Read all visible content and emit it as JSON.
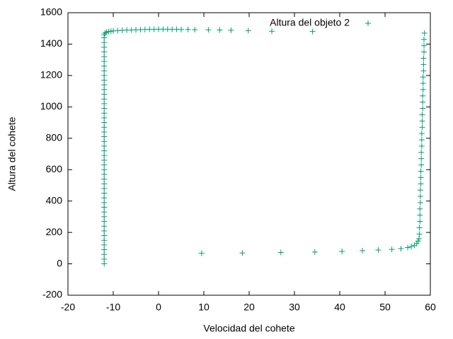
{
  "chart_data": {
    "type": "scatter",
    "xlabel": "Velocidad del cohete",
    "ylabel": "Altura del cohete",
    "xlim": [
      -20,
      60
    ],
    "xticks": [
      -20,
      -10,
      0,
      10,
      20,
      30,
      40,
      50,
      60
    ],
    "ylim": [
      -200,
      1600
    ],
    "yticks": [
      -200,
      0,
      200,
      400,
      600,
      800,
      1000,
      1200,
      1400,
      1600
    ],
    "legend": "top-right",
    "series": [
      {
        "name": "Altura del objeto 2",
        "color": "#009e73",
        "x": [
          -12,
          -12,
          -12,
          -12,
          -12,
          -12,
          -12,
          -12,
          -12,
          -12,
          -12,
          -12,
          -12,
          -12,
          -12,
          -12,
          -12,
          -12,
          -12,
          -12,
          -12,
          -12,
          -12,
          -12,
          -12,
          -12,
          -12,
          -12,
          -12,
          -12,
          -12,
          -12,
          -12,
          -12,
          -12,
          -12,
          -12,
          -12,
          -12,
          -12,
          -12,
          -12,
          -12,
          -12,
          -12,
          -12,
          -12,
          -12,
          -12,
          -12,
          -11.8,
          -11.5,
          -11,
          -10.5,
          -10,
          -9,
          -8,
          -7,
          -6,
          -5,
          -4,
          -3,
          -2,
          -1,
          0,
          1,
          2,
          3,
          4,
          5,
          6.5,
          8,
          11,
          13.5,
          16,
          19.8,
          25,
          34,
          9.5,
          18.5,
          27,
          34.5,
          40.5,
          45,
          48.5,
          51.5,
          53.5,
          55,
          55.8,
          56.5,
          57,
          57.3,
          57.5,
          57.6,
          57.6,
          57.7,
          57.7,
          57.7,
          57.8,
          57.8,
          57.8,
          57.9,
          57.9,
          57.9,
          58,
          58,
          58,
          58.1,
          58.1,
          58.1,
          58.2,
          58.2,
          58.2,
          58.3,
          58.3,
          58.3,
          58.4,
          58.4,
          58.4,
          58.5,
          58.5,
          58.5,
          58.6,
          58.6,
          58.6,
          58.7
        ],
        "y": [
          0,
          30,
          60,
          90,
          120,
          150,
          180,
          210,
          240,
          270,
          300,
          330,
          360,
          390,
          420,
          450,
          480,
          510,
          540,
          570,
          600,
          630,
          660,
          690,
          720,
          750,
          780,
          810,
          840,
          870,
          900,
          930,
          960,
          990,
          1020,
          1050,
          1080,
          1110,
          1140,
          1170,
          1200,
          1230,
          1260,
          1290,
          1320,
          1350,
          1380,
          1410,
          1440,
          1460,
          1470,
          1476,
          1480,
          1482,
          1484,
          1486,
          1488,
          1489,
          1490,
          1491,
          1492,
          1493,
          1494,
          1494,
          1495,
          1495,
          1495,
          1494,
          1494,
          1493,
          1493,
          1492,
          1491,
          1490,
          1488,
          1486,
          1482,
          1480,
          67,
          69,
          72,
          75,
          79,
          84,
          88,
          92,
          97,
          104,
          110,
          118,
          130,
          145,
          160,
          190,
          230,
          270,
          310,
          350,
          390,
          430,
          470,
          510,
          550,
          590,
          630,
          670,
          710,
          750,
          790,
          830,
          870,
          910,
          950,
          990,
          1030,
          1070,
          1110,
          1150,
          1190,
          1230,
          1270,
          1310,
          1350,
          1390,
          1430,
          1470
        ]
      }
    ]
  }
}
